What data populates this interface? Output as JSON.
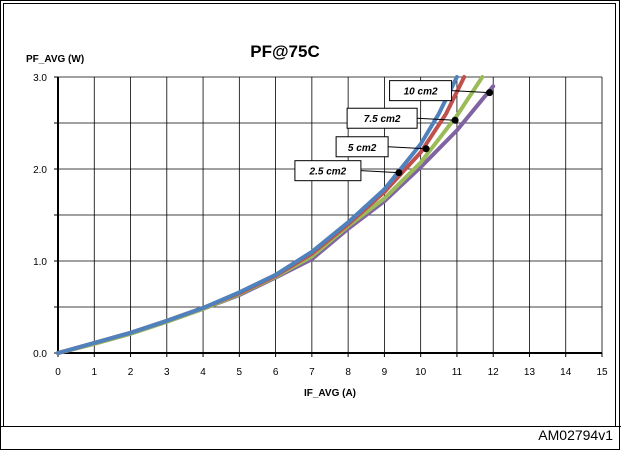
{
  "chart_data": {
    "type": "line",
    "title": "PF@75C",
    "xlabel": "IF_AVG (A)",
    "ylabel": "PF_AVG (W)",
    "xlim": [
      0,
      15
    ],
    "ylim": [
      0,
      3.0
    ],
    "x_ticks": [
      "0",
      "1",
      "2",
      "3",
      "4",
      "5",
      "6",
      "7",
      "8",
      "9",
      "10",
      "11",
      "12",
      "13",
      "14",
      "15"
    ],
    "y_ticks": [
      "0.0",
      "1.0",
      "2.0",
      "3.0"
    ],
    "grid": true,
    "series": [
      {
        "name": "10 cm2",
        "color": "#4F81BD",
        "x": [
          0,
          1,
          2,
          3,
          4,
          5,
          6,
          7,
          8,
          9,
          10,
          10.5,
          11
        ],
        "y": [
          0,
          0.11,
          0.22,
          0.35,
          0.49,
          0.66,
          0.85,
          1.1,
          1.42,
          1.78,
          2.27,
          2.6,
          3.0
        ]
      },
      {
        "name": "7.5 cm2",
        "color": "#C0504D",
        "x": [
          0,
          1,
          2,
          3,
          4,
          5,
          6,
          7,
          8,
          9,
          10,
          10.7,
          11.2
        ],
        "y": [
          0,
          0.11,
          0.22,
          0.35,
          0.49,
          0.65,
          0.84,
          1.08,
          1.4,
          1.75,
          2.18,
          2.6,
          3.0
        ]
      },
      {
        "name": "5 cm2",
        "color": "#9BBB59",
        "x": [
          0,
          1,
          2,
          3,
          4,
          5,
          6,
          7,
          8,
          9,
          10,
          11,
          11.7
        ],
        "y": [
          0,
          0.1,
          0.21,
          0.34,
          0.48,
          0.64,
          0.83,
          1.05,
          1.38,
          1.68,
          2.07,
          2.58,
          3.0
        ]
      },
      {
        "name": "2.5 cm2",
        "color": "#8064A2",
        "x": [
          0,
          1,
          2,
          3,
          4,
          5,
          6,
          7,
          8,
          9,
          10,
          11,
          12
        ],
        "y": [
          0,
          0.1,
          0.21,
          0.34,
          0.48,
          0.63,
          0.82,
          1.02,
          1.35,
          1.65,
          2.02,
          2.42,
          2.9
        ]
      }
    ],
    "annotations": [
      {
        "text": "10 cm2",
        "x": 11.9,
        "y": 2.83
      },
      {
        "text": "7.5 cm2",
        "x": 10.95,
        "y": 2.53
      },
      {
        "text": "5 cm2",
        "x": 10.15,
        "y": 2.22
      },
      {
        "text": "2.5 cm2",
        "x": 9.4,
        "y": 1.96
      }
    ]
  },
  "footer": {
    "ref_id": "AM02794v1"
  }
}
